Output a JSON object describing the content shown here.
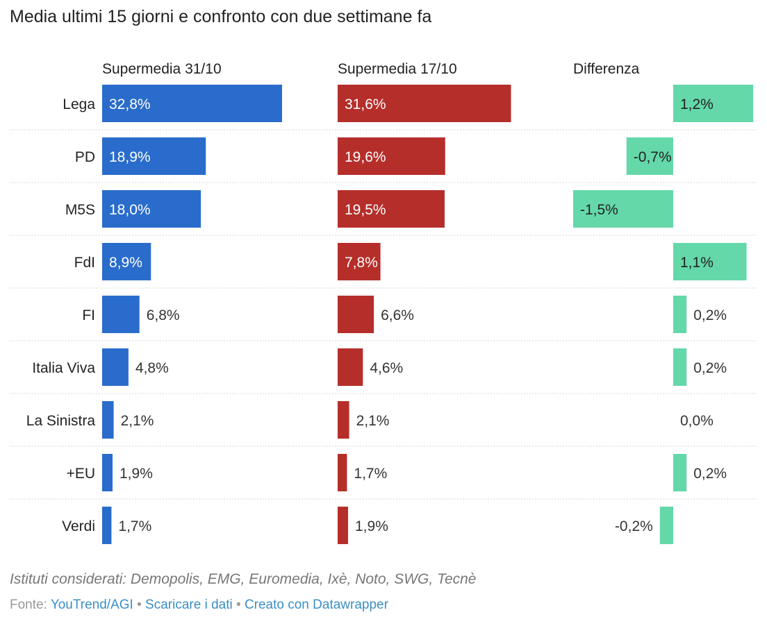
{
  "title": "Media ultimi 15 giorni e confronto con due settimane fa",
  "chart_data": {
    "type": "bar",
    "orientation": "horizontal",
    "categories": [
      "Lega",
      "PD",
      "M5S",
      "FdI",
      "FI",
      "Italia Viva",
      "La Sinistra",
      "+EU",
      "Verdi"
    ],
    "series": [
      {
        "name": "Supermedia 31/10",
        "color": "#2a6ccb",
        "values": [
          32.8,
          18.9,
          18.0,
          8.9,
          6.8,
          4.8,
          2.1,
          1.9,
          1.7
        ],
        "labels": [
          "32,8%",
          "18,9%",
          "18,0%",
          "8,9%",
          "6,8%",
          "4,8%",
          "2,1%",
          "1,9%",
          "1,7%"
        ]
      },
      {
        "name": "Supermedia 17/10",
        "color": "#b52e2a",
        "values": [
          31.6,
          19.6,
          19.5,
          7.8,
          6.6,
          4.6,
          2.1,
          1.7,
          1.9
        ],
        "labels": [
          "31,6%",
          "19,6%",
          "19,5%",
          "7,8%",
          "6,6%",
          "4,6%",
          "2,1%",
          "1,7%",
          "1,9%"
        ]
      },
      {
        "name": "Differenza",
        "color": "#64d8a9",
        "values": [
          1.2,
          -0.7,
          -1.5,
          1.1,
          0.2,
          0.2,
          0.0,
          0.2,
          -0.2
        ],
        "labels": [
          "1,2%",
          "-0,7%",
          "-1,5%",
          "1,1%",
          "0,2%",
          "0,2%",
          "0,0%",
          "0,2%",
          "-0,2%"
        ]
      }
    ],
    "grid": false,
    "legend": "none"
  },
  "footer": {
    "note": "Istituti considerati: Demopolis, EMG, Euromedia, Ixè, Noto, SWG, Tecnè",
    "source_label": "Fonte:",
    "source_link": "YouTrend/AGI",
    "separator": "•",
    "download_link": "Scaricare i dati",
    "created_link": "Creato con Datawrapper"
  }
}
